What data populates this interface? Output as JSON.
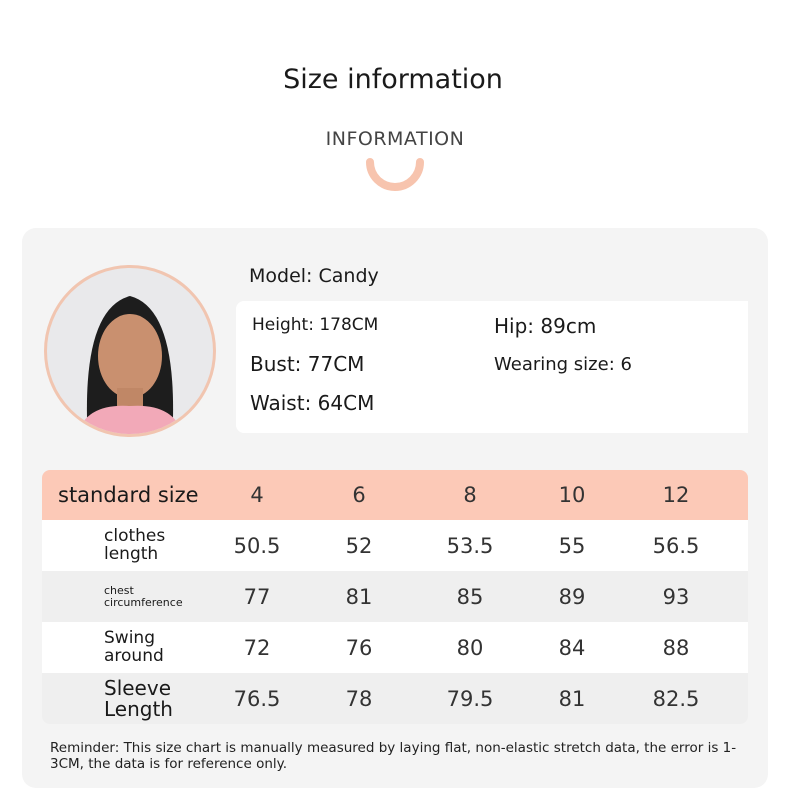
{
  "header": {
    "title": "Size information",
    "subtitle": "INFORMATION",
    "accent": "#f7c4ae"
  },
  "model": {
    "name_label": "Model: Candy",
    "height": "Height: 178CM",
    "bust": "Bust: 77CM",
    "waist": "Waist: 64CM",
    "hip": "Hip: 89cm",
    "wearing_size": "Wearing size: 6"
  },
  "table": {
    "header": {
      "label": "standard size",
      "sizes": [
        "4",
        "6",
        "8",
        "10",
        "12"
      ]
    },
    "rows": [
      {
        "label": "clothes length",
        "values": [
          "50.5",
          "52",
          "53.5",
          "55",
          "56.5"
        ]
      },
      {
        "label": "chest circumference",
        "values": [
          "77",
          "81",
          "85",
          "89",
          "93"
        ]
      },
      {
        "label": "Swing around",
        "values": [
          "72",
          "76",
          "80",
          "84",
          "88"
        ]
      },
      {
        "label": "Sleeve Length",
        "values": [
          "76.5",
          "78",
          "79.5",
          "81",
          "82.5"
        ]
      }
    ]
  },
  "note": "Reminder: This size chart is manually measured by laying flat, non-elastic stretch data, the error is 1-3CM, the data is for reference only."
}
